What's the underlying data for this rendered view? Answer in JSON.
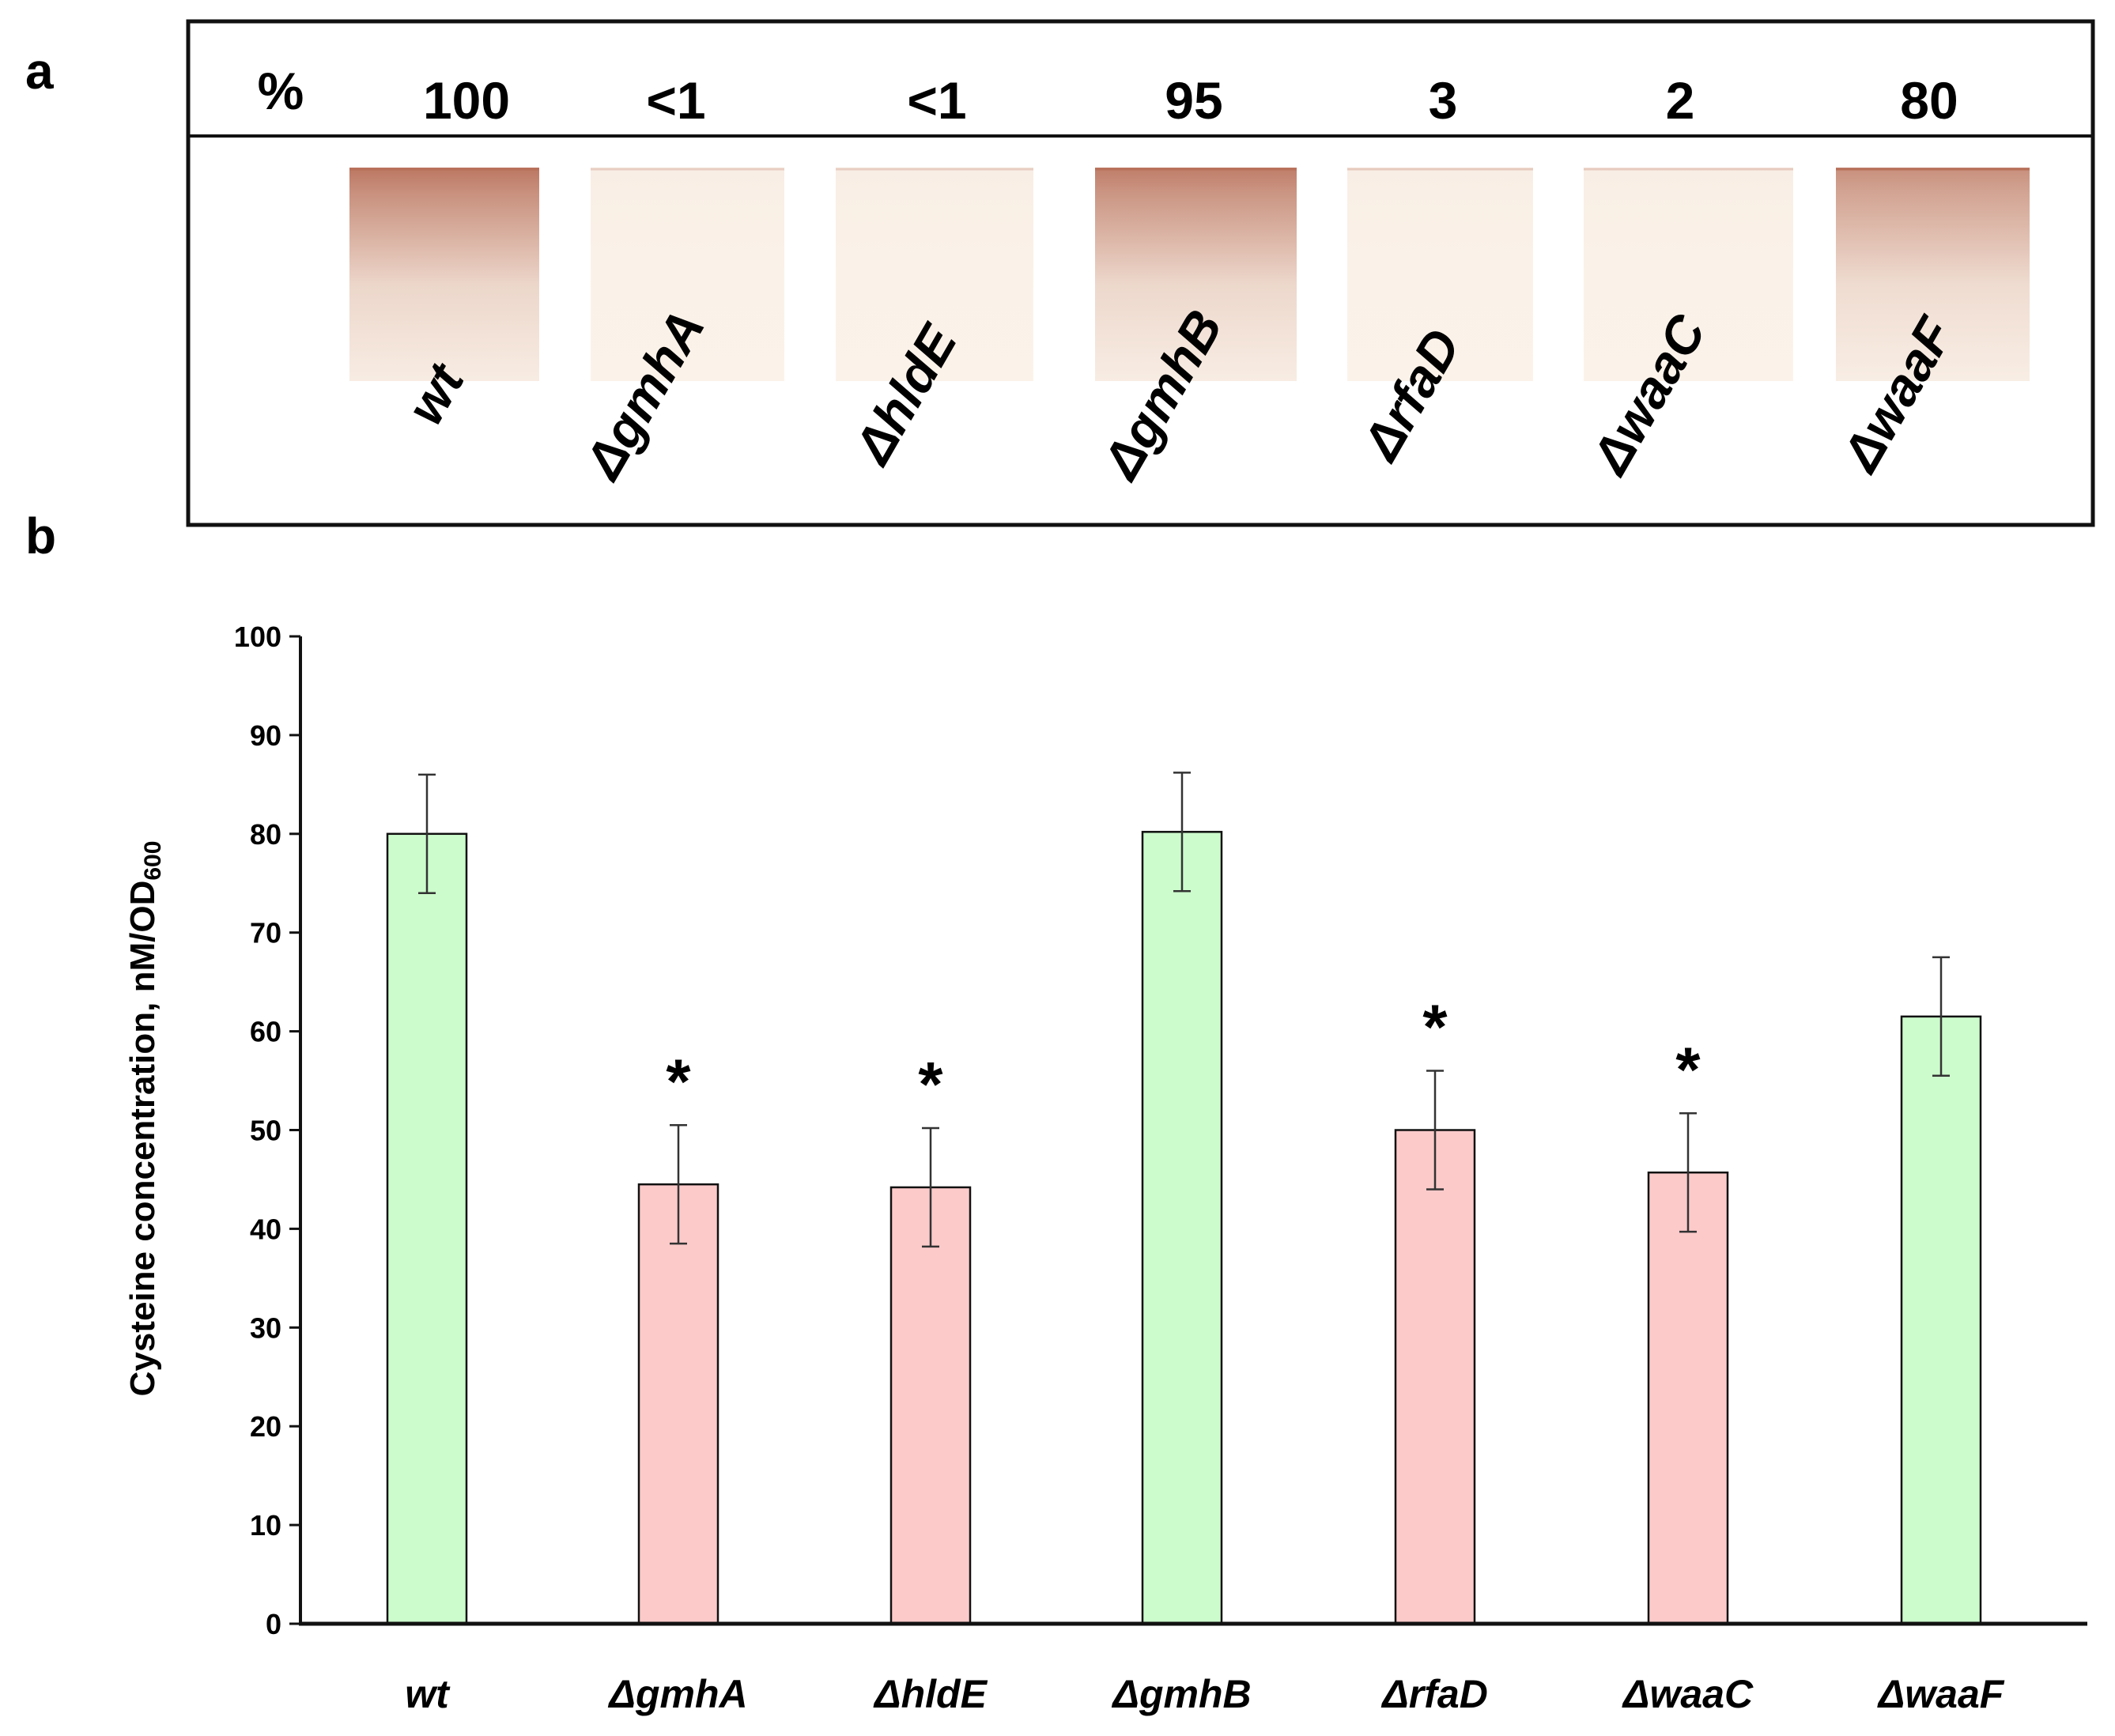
{
  "panel_a": {
    "letter": "a",
    "percent_header": "%",
    "lanes": [
      {
        "label": "wt",
        "percent": "100",
        "intensity": 1.0
      },
      {
        "label": "ΔgmhA",
        "percent": "<1",
        "intensity": 0.0
      },
      {
        "label": "ΔhldE",
        "percent": "<1",
        "intensity": 0.0
      },
      {
        "label": "ΔgmhB",
        "percent": "95",
        "intensity": 0.95
      },
      {
        "label": "ΔrfaD",
        "percent": "3",
        "intensity": 0.03
      },
      {
        "label": "ΔwaaC",
        "percent": "2",
        "intensity": 0.02
      },
      {
        "label": "ΔwaaF",
        "percent": "80",
        "intensity": 0.8
      }
    ],
    "colors": {
      "stain": "#b8705a",
      "paper": "#fbf3ea"
    }
  },
  "chart_data": {
    "panel_letter": "b",
    "type": "bar",
    "categories": [
      "wt",
      "ΔgmhA",
      "ΔhldE",
      "ΔgmhB",
      "ΔrfaD",
      "ΔwaaC",
      "ΔwaaF"
    ],
    "values": [
      80,
      44.5,
      44.2,
      80.2,
      50,
      45.7,
      61.5
    ],
    "errors": [
      6,
      6,
      6,
      6,
      6,
      6,
      6
    ],
    "significant": [
      false,
      true,
      true,
      false,
      true,
      true,
      false
    ],
    "significance_marker": "*",
    "bar_colors": [
      "#ccfccc",
      "#fdcaca",
      "#fdcaca",
      "#ccfccc",
      "#fdcaca",
      "#fdcaca",
      "#ccfccc"
    ],
    "ylabel_main": "Cysteine concentration, nM/OD",
    "ylabel_sub": "600",
    "xlabel": "",
    "ylim": [
      0,
      100
    ],
    "yticks": [
      0,
      10,
      20,
      30,
      40,
      50,
      60,
      70,
      80,
      90,
      100
    ]
  }
}
